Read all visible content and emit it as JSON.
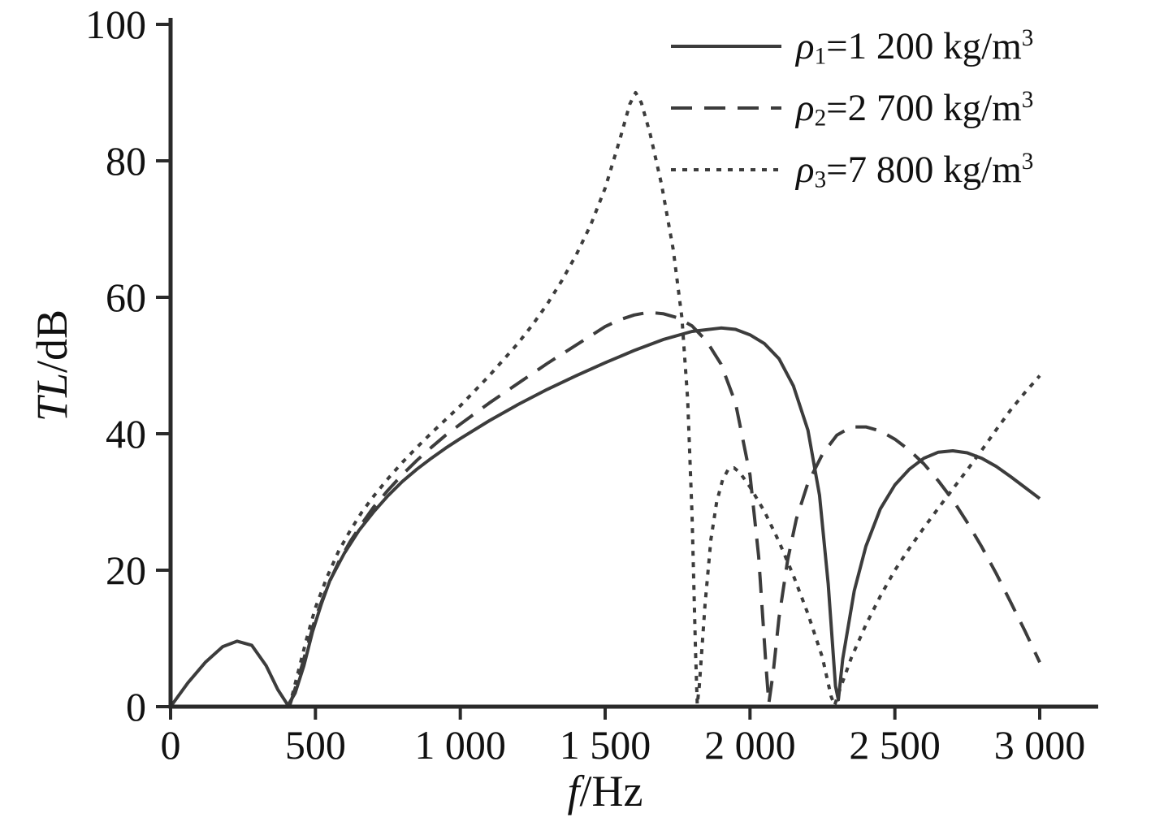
{
  "chart_data": {
    "type": "line",
    "title": "",
    "xlabel_italic": "f",
    "xlabel_rest": "/Hz",
    "ylabel_italic": "TL",
    "ylabel_rest": "/dB",
    "xlim": [
      0,
      3000
    ],
    "ylim": [
      0,
      100
    ],
    "grid": false,
    "legend_position": "top-right",
    "axis_color": "#2a2a2a",
    "line_color": "#3c3c3c",
    "text_color": "#111111",
    "x_ticks": [
      {
        "v": 0,
        "label": "0"
      },
      {
        "v": 500,
        "label": "500"
      },
      {
        "v": 1000,
        "label": "1 000"
      },
      {
        "v": 1500,
        "label": "1 500"
      },
      {
        "v": 2000,
        "label": "2 000"
      },
      {
        "v": 2500,
        "label": "2 500"
      },
      {
        "v": 3000,
        "label": "3 000"
      }
    ],
    "y_ticks": [
      {
        "v": 0,
        "label": "0"
      },
      {
        "v": 20,
        "label": "20"
      },
      {
        "v": 40,
        "label": "40"
      },
      {
        "v": 60,
        "label": "60"
      },
      {
        "v": 80,
        "label": "80"
      },
      {
        "v": 100,
        "label": "100"
      }
    ],
    "series": [
      {
        "name": "rho1",
        "style": "solid",
        "label": {
          "symbol": "ρ",
          "sub": "1",
          "body": "=1 200 kg/m",
          "sup": "3"
        },
        "points": [
          [
            0,
            0
          ],
          [
            60,
            3.5
          ],
          [
            120,
            6.5
          ],
          [
            180,
            8.8
          ],
          [
            230,
            9.6
          ],
          [
            280,
            9
          ],
          [
            330,
            6
          ],
          [
            370,
            2.5
          ],
          [
            405,
            0.2
          ],
          [
            430,
            2
          ],
          [
            460,
            6
          ],
          [
            490,
            11
          ],
          [
            520,
            15
          ],
          [
            550,
            18.5
          ],
          [
            600,
            22.5
          ],
          [
            650,
            25.8
          ],
          [
            700,
            28.5
          ],
          [
            750,
            30.9
          ],
          [
            800,
            33
          ],
          [
            850,
            34.8
          ],
          [
            900,
            36.4
          ],
          [
            950,
            37.9
          ],
          [
            1000,
            39.3
          ],
          [
            1100,
            41.9
          ],
          [
            1200,
            44.3
          ],
          [
            1300,
            46.5
          ],
          [
            1400,
            48.5
          ],
          [
            1500,
            50.4
          ],
          [
            1600,
            52.2
          ],
          [
            1700,
            53.8
          ],
          [
            1800,
            55
          ],
          [
            1900,
            55.5
          ],
          [
            1950,
            55.3
          ],
          [
            2000,
            54.5
          ],
          [
            2050,
            53.2
          ],
          [
            2100,
            51
          ],
          [
            2150,
            47
          ],
          [
            2200,
            40.5
          ],
          [
            2240,
            31
          ],
          [
            2270,
            18
          ],
          [
            2295,
            3
          ],
          [
            2305,
            1
          ],
          [
            2320,
            7
          ],
          [
            2360,
            17
          ],
          [
            2400,
            23.5
          ],
          [
            2450,
            29
          ],
          [
            2500,
            32.5
          ],
          [
            2550,
            34.8
          ],
          [
            2600,
            36.4
          ],
          [
            2650,
            37.3
          ],
          [
            2700,
            37.5
          ],
          [
            2750,
            37.2
          ],
          [
            2800,
            36.4
          ],
          [
            2850,
            35.2
          ],
          [
            2900,
            33.7
          ],
          [
            2950,
            32.1
          ],
          [
            3000,
            30.5
          ]
        ]
      },
      {
        "name": "rho2",
        "style": "dashed",
        "label": {
          "symbol": "ρ",
          "sub": "2",
          "body": "=2 700 kg/m",
          "sup": "3"
        },
        "points": [
          [
            410,
            0
          ],
          [
            440,
            4
          ],
          [
            470,
            8.5
          ],
          [
            500,
            13
          ],
          [
            540,
            17.5
          ],
          [
            580,
            21.2
          ],
          [
            620,
            24.2
          ],
          [
            660,
            26.8
          ],
          [
            700,
            29.2
          ],
          [
            750,
            31.7
          ],
          [
            800,
            34
          ],
          [
            850,
            36.1
          ],
          [
            900,
            38
          ],
          [
            950,
            39.8
          ],
          [
            1000,
            41.4
          ],
          [
            1100,
            44.5
          ],
          [
            1200,
            47.4
          ],
          [
            1300,
            50.3
          ],
          [
            1400,
            53
          ],
          [
            1500,
            55.7
          ],
          [
            1550,
            56.7
          ],
          [
            1600,
            57.4
          ],
          [
            1650,
            57.8
          ],
          [
            1700,
            57.6
          ],
          [
            1750,
            57
          ],
          [
            1800,
            55.8
          ],
          [
            1850,
            53.6
          ],
          [
            1900,
            50.2
          ],
          [
            1950,
            44.5
          ],
          [
            2000,
            34
          ],
          [
            2030,
            22
          ],
          [
            2055,
            6
          ],
          [
            2065,
            0.5
          ],
          [
            2080,
            5
          ],
          [
            2100,
            13
          ],
          [
            2130,
            21.5
          ],
          [
            2160,
            27.5
          ],
          [
            2200,
            32.8
          ],
          [
            2250,
            37
          ],
          [
            2300,
            39.8
          ],
          [
            2350,
            41
          ],
          [
            2400,
            41
          ],
          [
            2450,
            40.4
          ],
          [
            2500,
            39.2
          ],
          [
            2550,
            37.6
          ],
          [
            2600,
            35.6
          ],
          [
            2650,
            33.1
          ],
          [
            2700,
            30.3
          ],
          [
            2750,
            27
          ],
          [
            2800,
            23.4
          ],
          [
            2850,
            19.5
          ],
          [
            2900,
            15.3
          ],
          [
            2950,
            11
          ],
          [
            3000,
            6.5
          ]
        ]
      },
      {
        "name": "rho3",
        "style": "dotted",
        "label": {
          "symbol": "ρ",
          "sub": "3",
          "body": "=7 800 kg/m",
          "sup": "3"
        },
        "points": [
          [
            410,
            0
          ],
          [
            440,
            5
          ],
          [
            470,
            10
          ],
          [
            500,
            14.5
          ],
          [
            540,
            19
          ],
          [
            580,
            22.8
          ],
          [
            620,
            25.8
          ],
          [
            660,
            28.5
          ],
          [
            700,
            30.8
          ],
          [
            750,
            33.4
          ],
          [
            800,
            35.8
          ],
          [
            850,
            38
          ],
          [
            900,
            40.1
          ],
          [
            950,
            42.1
          ],
          [
            1000,
            44.1
          ],
          [
            1050,
            46.3
          ],
          [
            1100,
            48.5
          ],
          [
            1150,
            50.9
          ],
          [
            1200,
            53.3
          ],
          [
            1250,
            56
          ],
          [
            1300,
            59
          ],
          [
            1350,
            62.4
          ],
          [
            1400,
            66.2
          ],
          [
            1450,
            70.6
          ],
          [
            1500,
            76
          ],
          [
            1550,
            83
          ],
          [
            1585,
            88.3
          ],
          [
            1605,
            90
          ],
          [
            1625,
            88.5
          ],
          [
            1655,
            84
          ],
          [
            1695,
            76.5
          ],
          [
            1735,
            67
          ],
          [
            1765,
            57
          ],
          [
            1785,
            45
          ],
          [
            1800,
            28
          ],
          [
            1812,
            8
          ],
          [
            1818,
            0.3
          ],
          [
            1825,
            3
          ],
          [
            1845,
            15
          ],
          [
            1865,
            24.5
          ],
          [
            1885,
            30
          ],
          [
            1905,
            33.2
          ],
          [
            1925,
            34.8
          ],
          [
            1945,
            35
          ],
          [
            1965,
            34.3
          ],
          [
            2000,
            32.2
          ],
          [
            2050,
            28.6
          ],
          [
            2100,
            24.2
          ],
          [
            2150,
            19.2
          ],
          [
            2200,
            13.6
          ],
          [
            2250,
            7.2
          ],
          [
            2280,
            1.5
          ],
          [
            2292,
            0.2
          ],
          [
            2310,
            2.5
          ],
          [
            2350,
            7.2
          ],
          [
            2400,
            12
          ],
          [
            2450,
            16.2
          ],
          [
            2500,
            20
          ],
          [
            2550,
            23.2
          ],
          [
            2600,
            26.2
          ],
          [
            2650,
            29.1
          ],
          [
            2700,
            31.9
          ],
          [
            2750,
            34.7
          ],
          [
            2800,
            37.6
          ],
          [
            2850,
            40.6
          ],
          [
            2900,
            43.5
          ],
          [
            2950,
            46.1
          ],
          [
            3000,
            48.5
          ]
        ]
      }
    ]
  }
}
